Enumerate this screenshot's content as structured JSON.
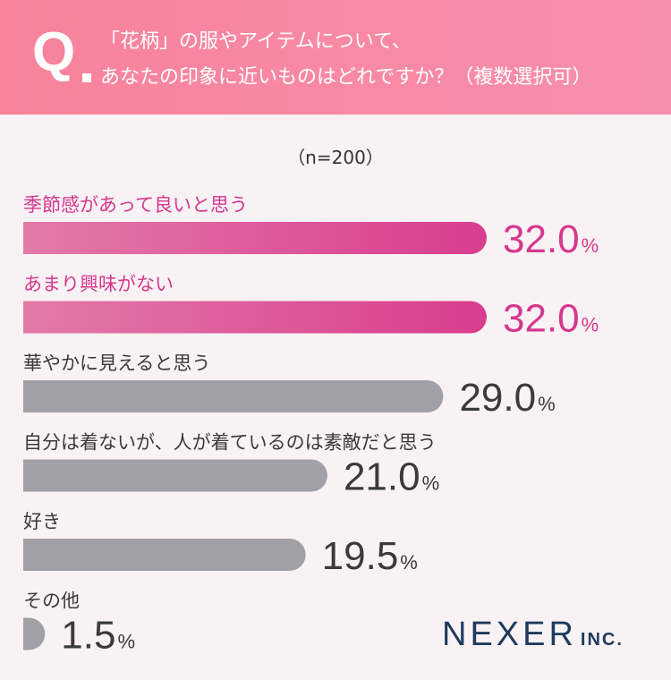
{
  "header": {
    "q_mark": "Q",
    "question_line1": "「花柄」の服やアイテムについて、",
    "question_line2": "あなたの印象に近いものはどれですか？（複数選択可）"
  },
  "sample_size": "（n=200）",
  "colors": {
    "highlight": "#d6378e",
    "highlight_bar_start": "#e27aa8",
    "highlight_bar_end": "#d93d8e",
    "neutral_bar": "#a0a0a6",
    "neutral_text": "#3a3a3a"
  },
  "chart_data": {
    "type": "bar",
    "orientation": "horizontal",
    "unit": "%",
    "categories": [
      "季節感があって良いと思う",
      "あまり興味がない",
      "華やかに見えると思う",
      "自分は着ないが、人が着ているのは素敵だと思う",
      "好き",
      "その他"
    ],
    "values": [
      32.0,
      32.0,
      29.0,
      21.0,
      19.5,
      1.5
    ],
    "value_labels": [
      "32.0",
      "32.0",
      "29.0",
      "21.0",
      "19.5",
      "1.5"
    ],
    "highlighted": [
      true,
      true,
      false,
      false,
      false,
      false
    ],
    "xlim": [
      0,
      32.0
    ],
    "grid": false,
    "legend": "none"
  },
  "logo": {
    "main": "NEXER",
    "sub": "INC."
  }
}
